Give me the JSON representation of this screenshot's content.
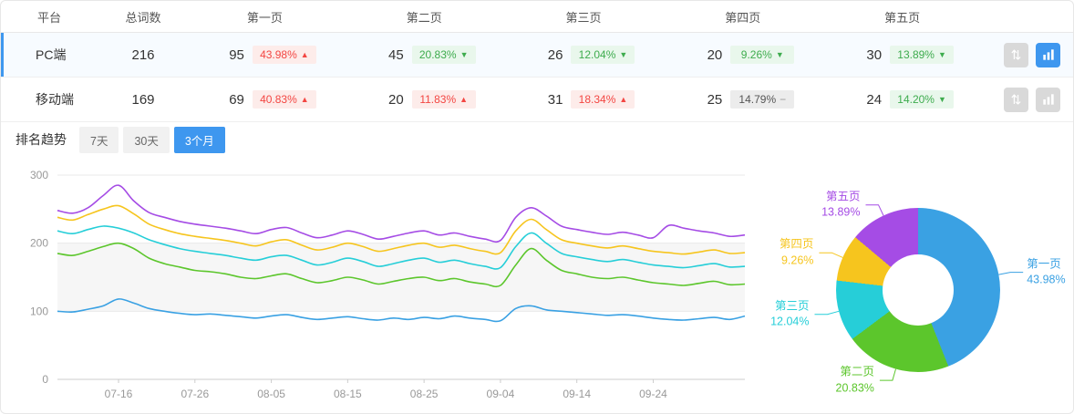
{
  "colors": {
    "accent": "#3e97ef",
    "up_red": "#f34642",
    "up_red_bg": "#fdecea",
    "down_green": "#3eac4e",
    "down_green_bg": "#e9f7ec",
    "flat_gray": "#555555",
    "flat_gray_bg": "#ececec"
  },
  "table": {
    "headers": [
      "平台",
      "总词数",
      "第一页",
      "第二页",
      "第三页",
      "第四页",
      "第五页"
    ],
    "rows": [
      {
        "platform": "PC端",
        "total": "216",
        "selected": true,
        "pages": [
          {
            "count": "95",
            "pct": "43.98%",
            "dir": "up"
          },
          {
            "count": "45",
            "pct": "20.83%",
            "dir": "down"
          },
          {
            "count": "26",
            "pct": "12.04%",
            "dir": "down"
          },
          {
            "count": "20",
            "pct": "9.26%",
            "dir": "down"
          },
          {
            "count": "30",
            "pct": "13.89%",
            "dir": "down"
          }
        ]
      },
      {
        "platform": "移动端",
        "total": "169",
        "selected": false,
        "pages": [
          {
            "count": "69",
            "pct": "40.83%",
            "dir": "up"
          },
          {
            "count": "20",
            "pct": "11.83%",
            "dir": "up"
          },
          {
            "count": "31",
            "pct": "18.34%",
            "dir": "up"
          },
          {
            "count": "25",
            "pct": "14.79%",
            "dir": "flat"
          },
          {
            "count": "24",
            "pct": "14.20%",
            "dir": "down"
          }
        ]
      }
    ]
  },
  "trend": {
    "label": "排名趋势",
    "tabs": [
      {
        "label": "7天",
        "active": false
      },
      {
        "label": "30天",
        "active": false
      },
      {
        "label": "3个月",
        "active": true
      }
    ]
  },
  "chart_data": [
    {
      "type": "line",
      "title": "排名趋势",
      "ylim": [
        0,
        300
      ],
      "y_ticks": [
        0,
        100,
        200,
        300
      ],
      "x_ticks": {
        "indices": [
          4,
          9,
          14,
          19,
          24,
          29,
          34,
          39
        ],
        "labels": [
          "07-16",
          "07-26",
          "08-05",
          "08-15",
          "08-25",
          "09-04",
          "09-14",
          "09-24"
        ]
      },
      "series": [
        {
          "name": "第一页",
          "color": "#3aa1e3",
          "values": [
            100,
            99,
            103,
            108,
            118,
            112,
            104,
            100,
            97,
            95,
            96,
            94,
            92,
            90,
            93,
            95,
            91,
            88,
            90,
            92,
            89,
            87,
            90,
            88,
            91,
            89,
            93,
            90,
            88,
            86,
            104,
            108,
            102,
            100,
            98,
            96,
            94,
            95,
            93,
            90,
            88,
            87,
            89,
            91,
            88,
            93
          ]
        },
        {
          "name": "第二页",
          "color": "#5cc62c",
          "values": [
            185,
            182,
            188,
            195,
            200,
            192,
            178,
            170,
            165,
            160,
            158,
            155,
            150,
            148,
            152,
            155,
            148,
            142,
            145,
            150,
            146,
            140,
            144,
            148,
            150,
            145,
            148,
            143,
            140,
            138,
            168,
            192,
            175,
            160,
            155,
            150,
            148,
            150,
            146,
            142,
            140,
            138,
            141,
            144,
            139,
            140
          ]
        },
        {
          "name": "第三页",
          "color": "#26ced8",
          "values": [
            218,
            214,
            220,
            225,
            222,
            215,
            205,
            198,
            192,
            188,
            185,
            182,
            178,
            175,
            180,
            182,
            175,
            168,
            172,
            178,
            173,
            166,
            170,
            175,
            178,
            172,
            175,
            170,
            166,
            164,
            195,
            215,
            200,
            185,
            180,
            176,
            173,
            176,
            172,
            168,
            166,
            164,
            167,
            170,
            165,
            166
          ]
        },
        {
          "name": "第四页",
          "color": "#f6c51e",
          "values": [
            238,
            234,
            242,
            250,
            255,
            243,
            228,
            220,
            214,
            210,
            207,
            204,
            200,
            196,
            202,
            205,
            197,
            190,
            194,
            200,
            195,
            188,
            192,
            197,
            200,
            194,
            197,
            192,
            188,
            186,
            218,
            235,
            220,
            205,
            200,
            196,
            193,
            196,
            192,
            188,
            186,
            184,
            187,
            190,
            185,
            186
          ]
        },
        {
          "name": "第五页",
          "color": "#a54ce5",
          "values": [
            248,
            244,
            252,
            270,
            285,
            262,
            245,
            238,
            232,
            228,
            225,
            222,
            218,
            214,
            220,
            223,
            215,
            208,
            212,
            218,
            213,
            206,
            210,
            215,
            218,
            212,
            215,
            210,
            206,
            204,
            238,
            252,
            240,
            225,
            220,
            216,
            213,
            216,
            212,
            208,
            226,
            222,
            218,
            215,
            210,
            212
          ]
        }
      ]
    },
    {
      "type": "pie",
      "slices": [
        {
          "label": "第一页",
          "pct": 43.98,
          "display": "43.98%",
          "color": "#3aa1e3"
        },
        {
          "label": "第二页",
          "pct": 20.83,
          "display": "20.83%",
          "color": "#5cc62c"
        },
        {
          "label": "第三页",
          "pct": 12.04,
          "display": "12.04%",
          "color": "#26ced8"
        },
        {
          "label": "第四页",
          "pct": 9.26,
          "display": "9.26%",
          "color": "#f6c51e"
        },
        {
          "label": "第五页",
          "pct": 13.89,
          "display": "13.89%",
          "color": "#a54ce5"
        }
      ]
    }
  ]
}
